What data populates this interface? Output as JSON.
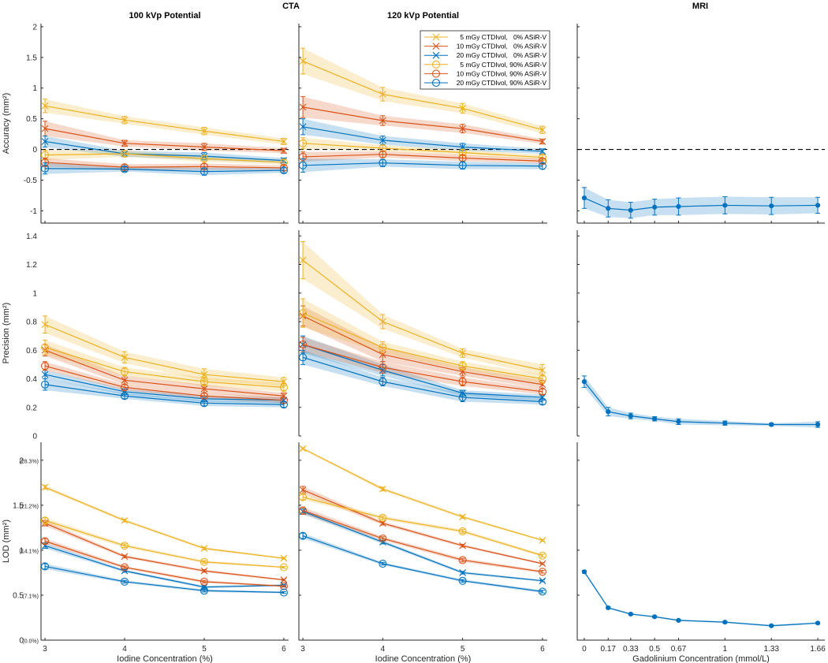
{
  "figure": {
    "suptitle_cta": "CTA",
    "suptitle_mri": "MRI",
    "colors": {
      "yellow": "#EDB120",
      "orange": "#D95319",
      "blue": "#0072BD",
      "axis": "#262626",
      "refline": "#000000"
    }
  },
  "legend": {
    "entries": [
      {
        "label": " 5 mGy CTDIvol,   0% ASiR-V",
        "color": "#EDB120",
        "marker": "x"
      },
      {
        "label": "10 mGy CTDIvol,   0% ASiR-V",
        "color": "#D95319",
        "marker": "x"
      },
      {
        "label": "20 mGy CTDIvol,   0% ASiR-V",
        "color": "#0072BD",
        "marker": "x"
      },
      {
        "label": " 5 mGy CTDIvol, 90% ASiR-V",
        "color": "#EDB120",
        "marker": "o"
      },
      {
        "label": "10 mGy CTDIvol, 90% ASiR-V",
        "color": "#D95319",
        "marker": "o"
      },
      {
        "label": "20 mGy CTDIvol, 90% ASiR-V",
        "color": "#0072BD",
        "marker": "o"
      }
    ],
    "placement": "top-right of 120 kVp accuracy panel"
  },
  "chart_data": [
    {
      "id": "acc-100",
      "type": "line",
      "title": "100 kVp Potential",
      "row": "accuracy",
      "col": "cta100",
      "xlabel": "",
      "ylabel": "Accuracy (mm²)",
      "x": [
        3,
        4,
        5,
        6
      ],
      "xticks": [],
      "xlim": [
        2.95,
        6.06
      ],
      "yticks": [
        -1,
        -0.5,
        0,
        0.5,
        1,
        1.5,
        2
      ],
      "ytick_labels": [
        "-1",
        "-0.5",
        "0",
        "0.5",
        "1",
        "1.5",
        "2"
      ],
      "ylim": [
        -1.2,
        2.05
      ],
      "refline": 0,
      "series": [
        {
          "name": "5 mGy, 0%",
          "color": "#EDB120",
          "marker": "x",
          "values": [
            0.71,
            0.48,
            0.3,
            0.13
          ],
          "err": [
            0.11,
            0.06,
            0.06,
            0.05
          ]
        },
        {
          "name": "10 mGy, 0%",
          "color": "#D95319",
          "marker": "x",
          "values": [
            0.34,
            0.1,
            0.04,
            -0.02
          ],
          "err": [
            0.12,
            0.05,
            0.06,
            0.04
          ]
        },
        {
          "name": "20 mGy, 0%",
          "color": "#0072BD",
          "marker": "x",
          "values": [
            0.13,
            -0.07,
            -0.11,
            -0.18
          ],
          "err": [
            0.09,
            0.05,
            0.06,
            0.04
          ]
        },
        {
          "name": "5 mGy, 90%",
          "color": "#EDB120",
          "marker": "o",
          "values": [
            -0.09,
            -0.07,
            -0.15,
            -0.21
          ],
          "err": [
            0.08,
            0.05,
            0.05,
            0.04
          ]
        },
        {
          "name": "10 mGy, 90%",
          "color": "#D95319",
          "marker": "o",
          "values": [
            -0.21,
            -0.29,
            -0.28,
            -0.3
          ],
          "err": [
            0.07,
            0.05,
            0.05,
            0.04
          ]
        },
        {
          "name": "20 mGy, 90%",
          "color": "#0072BD",
          "marker": "o",
          "values": [
            -0.31,
            -0.32,
            -0.36,
            -0.34
          ],
          "err": [
            0.09,
            0.04,
            0.06,
            0.04
          ]
        }
      ]
    },
    {
      "id": "acc-120",
      "type": "line",
      "title": "120 kVp Potential",
      "row": "accuracy",
      "col": "cta120",
      "xlabel": "",
      "ylabel": "",
      "x": [
        3,
        4,
        5,
        6
      ],
      "xticks": [],
      "xlim": [
        2.95,
        6.06
      ],
      "yticks": [
        -1,
        -0.5,
        0,
        0.5,
        1,
        1.5,
        2
      ],
      "ytick_labels": [],
      "ylim": [
        -1.2,
        2.05
      ],
      "refline": 0,
      "series": [
        {
          "name": "5 mGy, 0%",
          "color": "#EDB120",
          "marker": "x",
          "values": [
            1.44,
            0.9,
            0.67,
            0.32
          ],
          "err": [
            0.21,
            0.11,
            0.08,
            0.06
          ]
        },
        {
          "name": "10 mGy, 0%",
          "color": "#D95319",
          "marker": "x",
          "values": [
            0.69,
            0.47,
            0.34,
            0.13
          ],
          "err": [
            0.17,
            0.08,
            0.07,
            0.04
          ]
        },
        {
          "name": "20 mGy, 0%",
          "color": "#0072BD",
          "marker": "x",
          "values": [
            0.37,
            0.15,
            0.04,
            -0.03
          ],
          "err": [
            0.13,
            0.07,
            0.06,
            0.04
          ]
        },
        {
          "name": "5 mGy, 90%",
          "color": "#EDB120",
          "marker": "o",
          "values": [
            0.1,
            0.02,
            -0.05,
            -0.13
          ],
          "err": [
            0.09,
            0.05,
            0.05,
            0.04
          ]
        },
        {
          "name": "10 mGy, 90%",
          "color": "#D95319",
          "marker": "o",
          "values": [
            -0.12,
            -0.08,
            -0.14,
            -0.19
          ],
          "err": [
            0.08,
            0.05,
            0.05,
            0.04
          ]
        },
        {
          "name": "20 mGy, 90%",
          "color": "#0072BD",
          "marker": "o",
          "values": [
            -0.26,
            -0.22,
            -0.26,
            -0.27
          ],
          "err": [
            0.11,
            0.06,
            0.06,
            0.05
          ]
        }
      ]
    },
    {
      "id": "acc-mri",
      "type": "line",
      "title": "",
      "row": "accuracy",
      "col": "mri",
      "xlabel": "",
      "ylabel": "",
      "x": [
        0,
        0.17,
        0.33,
        0.5,
        0.67,
        1,
        1.33,
        1.66
      ],
      "xticks": [],
      "xlim": [
        -0.05,
        1.71
      ],
      "yticks": [
        -1,
        -0.5,
        0,
        0.5,
        1,
        1.5,
        2
      ],
      "ytick_labels": [],
      "ylim": [
        -1.2,
        2.05
      ],
      "refline": 0,
      "series": [
        {
          "name": "MRI",
          "color": "#0072BD",
          "marker": "dot",
          "values": [
            -0.79,
            -0.96,
            -0.99,
            -0.94,
            -0.93,
            -0.91,
            -0.92,
            -0.91
          ],
          "err": [
            0.17,
            0.14,
            0.13,
            0.13,
            0.14,
            0.14,
            0.14,
            0.13
          ]
        }
      ]
    },
    {
      "id": "prec-100",
      "type": "line",
      "title": "",
      "row": "precision",
      "col": "cta100",
      "xlabel": "",
      "ylabel": "Precision (mm²)",
      "x": [
        3,
        4,
        5,
        6
      ],
      "xticks": [],
      "xlim": [
        2.95,
        6.06
      ],
      "yticks": [
        0,
        0.2,
        0.4,
        0.6,
        0.8,
        1,
        1.2,
        1.4
      ],
      "ytick_labels": [
        "0",
        "0.2",
        "0.4",
        "0.6",
        "0.8",
        "1",
        "1.2",
        "1.4"
      ],
      "ylim": [
        0,
        1.44
      ],
      "series": [
        {
          "name": "5 mGy, 0%",
          "color": "#EDB120",
          "marker": "x",
          "values": [
            0.78,
            0.55,
            0.43,
            0.38
          ],
          "err": [
            0.06,
            0.04,
            0.04,
            0.03
          ]
        },
        {
          "name": "10 mGy, 0%",
          "color": "#D95319",
          "marker": "x",
          "values": [
            0.6,
            0.39,
            0.33,
            0.28
          ],
          "err": [
            0.04,
            0.03,
            0.03,
            0.02
          ]
        },
        {
          "name": "20 mGy, 0%",
          "color": "#0072BD",
          "marker": "x",
          "values": [
            0.43,
            0.31,
            0.26,
            0.25
          ],
          "err": [
            0.03,
            0.02,
            0.02,
            0.02
          ]
        },
        {
          "name": "5 mGy, 90%",
          "color": "#EDB120",
          "marker": "o",
          "values": [
            0.62,
            0.45,
            0.38,
            0.34
          ],
          "err": [
            0.05,
            0.03,
            0.03,
            0.03
          ]
        },
        {
          "name": "10 mGy, 90%",
          "color": "#D95319",
          "marker": "o",
          "values": [
            0.49,
            0.34,
            0.28,
            0.25
          ],
          "err": [
            0.03,
            0.02,
            0.02,
            0.02
          ]
        },
        {
          "name": "20 mGy, 90%",
          "color": "#0072BD",
          "marker": "o",
          "values": [
            0.36,
            0.28,
            0.23,
            0.22
          ],
          "err": [
            0.04,
            0.02,
            0.02,
            0.02
          ]
        }
      ]
    },
    {
      "id": "prec-120",
      "type": "line",
      "title": "",
      "row": "precision",
      "col": "cta120",
      "xlabel": "",
      "ylabel": "",
      "x": [
        3,
        4,
        5,
        6
      ],
      "xticks": [],
      "xlim": [
        2.95,
        6.06
      ],
      "yticks": [
        0,
        0.2,
        0.4,
        0.6,
        0.8,
        1,
        1.2,
        1.4
      ],
      "ytick_labels": [],
      "ylim": [
        0,
        1.44
      ],
      "series": [
        {
          "name": "5 mGy, 0%",
          "color": "#EDB120",
          "marker": "x",
          "values": [
            1.23,
            0.8,
            0.58,
            0.46
          ],
          "err": [
            0.13,
            0.05,
            0.03,
            0.04
          ]
        },
        {
          "name": "10 mGy, 0%",
          "color": "#D95319",
          "marker": "x",
          "values": [
            0.84,
            0.57,
            0.45,
            0.36
          ],
          "err": [
            0.07,
            0.05,
            0.03,
            0.03
          ]
        },
        {
          "name": "20 mGy, 0%",
          "color": "#0072BD",
          "marker": "x",
          "values": [
            0.64,
            0.46,
            0.3,
            0.27
          ],
          "err": [
            0.06,
            0.04,
            0.02,
            0.02
          ]
        },
        {
          "name": "5 mGy, 90%",
          "color": "#EDB120",
          "marker": "o",
          "values": [
            0.86,
            0.62,
            0.49,
            0.4
          ],
          "err": [
            0.1,
            0.04,
            0.03,
            0.03
          ]
        },
        {
          "name": "10 mGy, 90%",
          "color": "#D95319",
          "marker": "o",
          "values": [
            0.64,
            0.48,
            0.38,
            0.31
          ],
          "err": [
            0.05,
            0.04,
            0.03,
            0.02
          ]
        },
        {
          "name": "20 mGy, 90%",
          "color": "#0072BD",
          "marker": "o",
          "values": [
            0.55,
            0.38,
            0.27,
            0.24
          ],
          "err": [
            0.05,
            0.03,
            0.03,
            0.02
          ]
        }
      ]
    },
    {
      "id": "prec-mri",
      "type": "line",
      "title": "",
      "row": "precision",
      "col": "mri",
      "xlabel": "",
      "ylabel": "",
      "x": [
        0,
        0.17,
        0.33,
        0.5,
        0.67,
        1,
        1.33,
        1.66
      ],
      "xticks": [],
      "xlim": [
        -0.05,
        1.71
      ],
      "yticks": [
        0,
        0.2,
        0.4,
        0.6,
        0.8,
        1,
        1.2,
        1.4
      ],
      "ytick_labels": [],
      "ylim": [
        0,
        1.44
      ],
      "series": [
        {
          "name": "MRI",
          "color": "#0072BD",
          "marker": "dot",
          "values": [
            0.38,
            0.17,
            0.14,
            0.12,
            0.1,
            0.09,
            0.08,
            0.08
          ],
          "err": [
            0.04,
            0.03,
            0.02,
            0.015,
            0.02,
            0.015,
            0.01,
            0.02
          ]
        }
      ]
    },
    {
      "id": "lod-100",
      "type": "line",
      "title": "",
      "row": "lod",
      "col": "cta100",
      "xlabel": "Iodine Concentration (%)",
      "ylabel": "LOD (mm²)",
      "x": [
        3,
        4,
        5,
        6
      ],
      "xticks": [
        3,
        4,
        5,
        6
      ],
      "xtick_labels": [
        "3",
        "4",
        "5",
        "6"
      ],
      "xlim": [
        2.95,
        6.06
      ],
      "yticks": [
        0,
        0.5,
        1,
        1.5,
        2
      ],
      "ytick_labels": [
        "0",
        "0.5",
        "1",
        "1.5",
        "2"
      ],
      "ytick_pct": [
        "(0.0%)",
        "(7.1%)",
        "(14.1%)",
        "(21.2%)",
        "(28.3%)"
      ],
      "ylim": [
        0,
        2.2
      ],
      "series": [
        {
          "name": "5 mGy, 0%",
          "color": "#EDB120",
          "marker": "x",
          "values": [
            1.7,
            1.33,
            1.02,
            0.91
          ],
          "err": [
            0.02,
            0.015,
            0.015,
            0.01
          ]
        },
        {
          "name": "10 mGy, 0%",
          "color": "#D95319",
          "marker": "x",
          "values": [
            1.3,
            0.93,
            0.77,
            0.67
          ],
          "err": [
            0.03,
            0.015,
            0.015,
            0.01
          ]
        },
        {
          "name": "20 mGy, 0%",
          "color": "#0072BD",
          "marker": "x",
          "values": [
            1.05,
            0.77,
            0.59,
            0.61
          ],
          "err": [
            0.03,
            0.015,
            0.015,
            0.01
          ]
        },
        {
          "name": "5 mGy, 90%",
          "color": "#EDB120",
          "marker": "o",
          "values": [
            1.33,
            1.05,
            0.87,
            0.81
          ],
          "err": [
            0.03,
            0.02,
            0.015,
            0.01
          ]
        },
        {
          "name": "10 mGy, 90%",
          "color": "#D95319",
          "marker": "o",
          "values": [
            1.1,
            0.81,
            0.65,
            0.6
          ],
          "err": [
            0.03,
            0.015,
            0.015,
            0.01
          ]
        },
        {
          "name": "20 mGy, 90%",
          "color": "#0072BD",
          "marker": "o",
          "values": [
            0.82,
            0.65,
            0.55,
            0.53
          ],
          "err": [
            0.03,
            0.015,
            0.015,
            0.01
          ]
        }
      ]
    },
    {
      "id": "lod-120",
      "type": "line",
      "title": "",
      "row": "lod",
      "col": "cta120",
      "xlabel": "Iodine Concentration (%)",
      "ylabel": "",
      "x": [
        3,
        4,
        5,
        6
      ],
      "xticks": [
        3,
        4,
        5,
        6
      ],
      "xtick_labels": [
        "3",
        "4",
        "5",
        "6"
      ],
      "xlim": [
        2.95,
        6.06
      ],
      "yticks": [
        0,
        0.5,
        1,
        1.5,
        2
      ],
      "ytick_labels": [],
      "ylim": [
        0,
        2.2
      ],
      "series": [
        {
          "name": "5 mGy, 0%",
          "color": "#EDB120",
          "marker": "x",
          "values": [
            2.13,
            1.68,
            1.37,
            1.11
          ],
          "err": [
            0.01,
            0.02,
            0.015,
            0.01
          ]
        },
        {
          "name": "10 mGy, 0%",
          "color": "#D95319",
          "marker": "x",
          "values": [
            1.67,
            1.3,
            1.05,
            0.85
          ],
          "err": [
            0.04,
            0.02,
            0.015,
            0.01
          ]
        },
        {
          "name": "20 mGy, 0%",
          "color": "#0072BD",
          "marker": "x",
          "values": [
            1.43,
            1.09,
            0.75,
            0.66
          ],
          "err": [
            0.03,
            0.02,
            0.015,
            0.01
          ]
        },
        {
          "name": "5 mGy, 90%",
          "color": "#EDB120",
          "marker": "o",
          "values": [
            1.59,
            1.36,
            1.21,
            0.94
          ],
          "err": [
            0.03,
            0.02,
            0.02,
            0.015
          ]
        },
        {
          "name": "10 mGy, 90%",
          "color": "#D95319",
          "marker": "o",
          "values": [
            1.44,
            1.13,
            0.89,
            0.76
          ],
          "err": [
            0.04,
            0.02,
            0.02,
            0.015
          ]
        },
        {
          "name": "20 mGy, 90%",
          "color": "#0072BD",
          "marker": "o",
          "values": [
            1.16,
            0.85,
            0.66,
            0.54
          ],
          "err": [
            0.03,
            0.015,
            0.015,
            0.015
          ]
        }
      ]
    },
    {
      "id": "lod-mri",
      "type": "line",
      "title": "",
      "row": "lod",
      "col": "mri",
      "xlabel": "Gadolinium Concentration (mmol/L)",
      "ylabel": "",
      "x": [
        0,
        0.17,
        0.33,
        0.5,
        0.67,
        1,
        1.33,
        1.66
      ],
      "xticks": [
        0,
        0.17,
        0.33,
        0.5,
        0.67,
        1,
        1.33,
        1.66
      ],
      "xtick_labels": [
        "0",
        "0.17",
        "0.33",
        "0.5",
        "0.67",
        "1",
        "1.33",
        "1.66"
      ],
      "xlim": [
        -0.05,
        1.71
      ],
      "yticks": [
        0,
        0.5,
        1,
        1.5,
        2
      ],
      "ytick_labels": [],
      "ylim": [
        0,
        2.2
      ],
      "series": [
        {
          "name": "MRI",
          "color": "#0072BD",
          "marker": "dot",
          "values": [
            0.76,
            0.36,
            0.29,
            0.26,
            0.22,
            0.2,
            0.16,
            0.19
          ],
          "err": [
            0.015,
            0.01,
            0.01,
            0.01,
            0.01,
            0.01,
            0.01,
            0.01
          ]
        }
      ]
    }
  ]
}
